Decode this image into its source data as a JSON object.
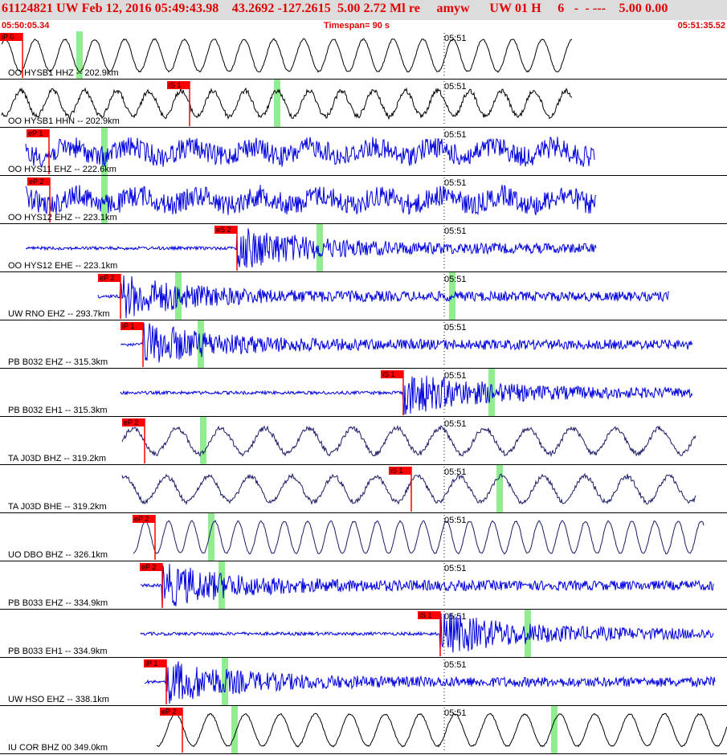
{
  "header": {
    "event_id": "61124821",
    "network": "UW",
    "date_time": "Feb 12, 2016 05:49:43.98",
    "lat": "43.2692",
    "lon": "-127.2615",
    "depth": "5.00",
    "magnitude": "2.72",
    "mag_type": "Ml",
    "flag": "re",
    "analyst": "amyw",
    "region_code": "UW 01 H",
    "count": "6",
    "quality": "- - ---",
    "rms": "5.00 0.00",
    "text": "61124821 UW Feb 12, 2016 05:49:43.98    43.2692 -127.2615  5.00 2.72 Ml re     amyw      UW 01 H     6   -  - ---    5.00 0.00"
  },
  "timebar": {
    "start": "05:50:05.34",
    "timespan": "Timespan=  90 s",
    "end": "05:51:35.52"
  },
  "minute_label": "05:51",
  "colors": {
    "header_bg": "#dcdcdc",
    "header_text": "#e00000",
    "pick_flag": "#ff0000",
    "trace_blue": "#0000dd",
    "trace_black": "#000000",
    "trace_navy": "#1a1a66",
    "green_marker": "#90ee90"
  },
  "traces": [
    {
      "label": "OO HYSB1 HHZ -- 202.9km",
      "color": "black",
      "style": "smooth",
      "pick": "iP 0",
      "pick_type": "P"
    },
    {
      "label": "OO HYSB1 HHN -- 202.9km",
      "color": "black",
      "style": "smoothnoisy",
      "pick": "iS 1",
      "pick_type": "S"
    },
    {
      "label": "OO HYS11 EHZ -- 222.6km",
      "color": "blue",
      "style": "noisy",
      "pick": "eP 1",
      "pick_type": "P"
    },
    {
      "label": "OO HYS12 EHZ -- 223.1km",
      "color": "blue",
      "style": "noisy",
      "pick": "eP 2",
      "pick_type": "P"
    },
    {
      "label": "OO HYS12 EHE -- 223.1km",
      "color": "blue",
      "style": "burst",
      "pick": "eS 2",
      "pick_type": "S"
    },
    {
      "label": "UW RNO EHZ -- 293.7km",
      "color": "blue",
      "style": "burst",
      "pick": "eP 2",
      "pick_type": "P"
    },
    {
      "label": "PB B032 EHZ -- 315.3km",
      "color": "blue",
      "style": "burst",
      "pick": "iP 1",
      "pick_type": "P"
    },
    {
      "label": "PB B032 EH1 -- 315.3km",
      "color": "blue",
      "style": "burst",
      "pick": "iS 1",
      "pick_type": "S"
    },
    {
      "label": "TA J03D BHZ -- 319.2km",
      "color": "navy",
      "style": "smoothnoisy",
      "pick": "eP 2",
      "pick_type": "P"
    },
    {
      "label": "TA J03D BHE -- 319.2km",
      "color": "navy",
      "style": "smoothnoisy",
      "pick": "iS 1",
      "pick_type": "S"
    },
    {
      "label": "UO DBO BHZ -- 326.1km",
      "color": "navy",
      "style": "smooth",
      "pick": "eP 2",
      "pick_type": "P"
    },
    {
      "label": "PB B033 EHZ -- 334.9km",
      "color": "blue",
      "style": "burst",
      "pick": "eP 2",
      "pick_type": "P"
    },
    {
      "label": "PB B033 EH1 -- 334.9km",
      "color": "blue",
      "style": "burst",
      "pick": "iS 1",
      "pick_type": "S"
    },
    {
      "label": "UW HSO EHZ -- 338.1km",
      "color": "blue",
      "style": "burst",
      "pick": "iP 1",
      "pick_type": "P"
    },
    {
      "label": "IU COR BHZ 00 349.0km",
      "color": "black",
      "style": "smooth",
      "pick": "eP 2",
      "pick_type": "P"
    }
  ]
}
